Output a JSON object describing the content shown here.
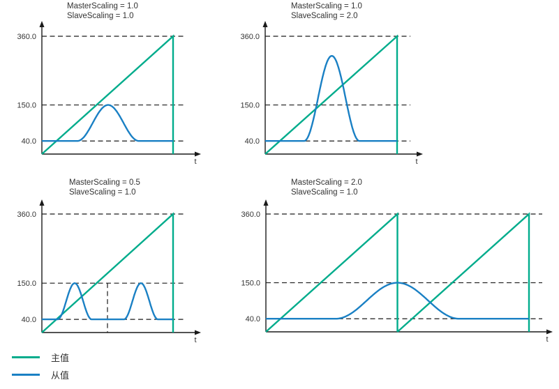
{
  "figure": {
    "background": "#ffffff"
  },
  "colors": {
    "master": "#00AC8C",
    "slave": "#1A80C4",
    "axis": "#1a1a1a",
    "grid": "#1a1a1a",
    "text": "#333333"
  },
  "legend": {
    "items": [
      {
        "name": "master",
        "label": "主值"
      },
      {
        "name": "slave",
        "label": "从值"
      }
    ]
  },
  "chart_data": [
    {
      "type": "line",
      "title_lines": [
        "MasterScaling = 1.0",
        "SlaveScaling = 1.0"
      ],
      "xlabel": "t",
      "yticks": [
        360.0,
        150.0,
        40.0
      ],
      "ylim": [
        0,
        400
      ],
      "grid": "dashed-horizontal",
      "marker_vline": null,
      "series": [
        {
          "name": "主值",
          "shape": "sawtooth",
          "cycles": 1,
          "from": 0,
          "to": 360
        },
        {
          "name": "从值",
          "shape": "cam",
          "base": 40,
          "bells": [
            {
              "center_fraction": 0.505,
              "half_width_fraction": 0.235,
              "peak": 150
            }
          ]
        }
      ]
    },
    {
      "type": "line",
      "title_lines": [
        "MasterScaling = 1.0",
        "SlaveScaling = 2.0"
      ],
      "xlabel": "t",
      "yticks": [
        360.0,
        150.0,
        40.0
      ],
      "ylim": [
        0,
        400
      ],
      "grid": "dashed-horizontal",
      "marker_vline": null,
      "series": [
        {
          "name": "主值",
          "shape": "sawtooth",
          "cycles": 1,
          "from": 0,
          "to": 360
        },
        {
          "name": "从值",
          "shape": "cam",
          "base": 40,
          "bells": [
            {
              "center_fraction": 0.505,
              "half_width_fraction": 0.21,
              "peak": 300
            }
          ]
        }
      ]
    },
    {
      "type": "line",
      "title_lines": [
        "MasterScaling = 0.5",
        "SlaveScaling = 1.0"
      ],
      "xlabel": "t",
      "yticks": [
        360.0,
        150.0,
        40.0
      ],
      "ylim": [
        0,
        400
      ],
      "grid": "dashed-horizontal",
      "marker_vline": {
        "fraction": 0.5,
        "to_value": 150
      },
      "series": [
        {
          "name": "主值",
          "shape": "sawtooth",
          "cycles": 1,
          "from": 0,
          "to": 360
        },
        {
          "name": "从值",
          "shape": "cam",
          "base": 40,
          "bells": [
            {
              "center_fraction": 0.25,
              "half_width_fraction": 0.13,
              "peak": 150
            },
            {
              "center_fraction": 0.755,
              "half_width_fraction": 0.13,
              "peak": 150
            }
          ]
        }
      ]
    },
    {
      "type": "line",
      "title_lines": [
        "MasterScaling = 2.0",
        "SlaveScaling = 1.0"
      ],
      "xlabel": "t",
      "yticks": [
        360.0,
        150.0,
        40.0
      ],
      "ylim": [
        0,
        400
      ],
      "grid": "dashed-horizontal",
      "marker_vline": null,
      "series": [
        {
          "name": "主值",
          "shape": "sawtooth",
          "cycles": 2,
          "from": 0,
          "to": 360
        },
        {
          "name": "从值",
          "shape": "cam",
          "base": 40,
          "bells": [
            {
              "center_fraction": 0.5,
              "half_width_fraction": 0.235,
              "peak": 150
            }
          ]
        }
      ]
    }
  ]
}
